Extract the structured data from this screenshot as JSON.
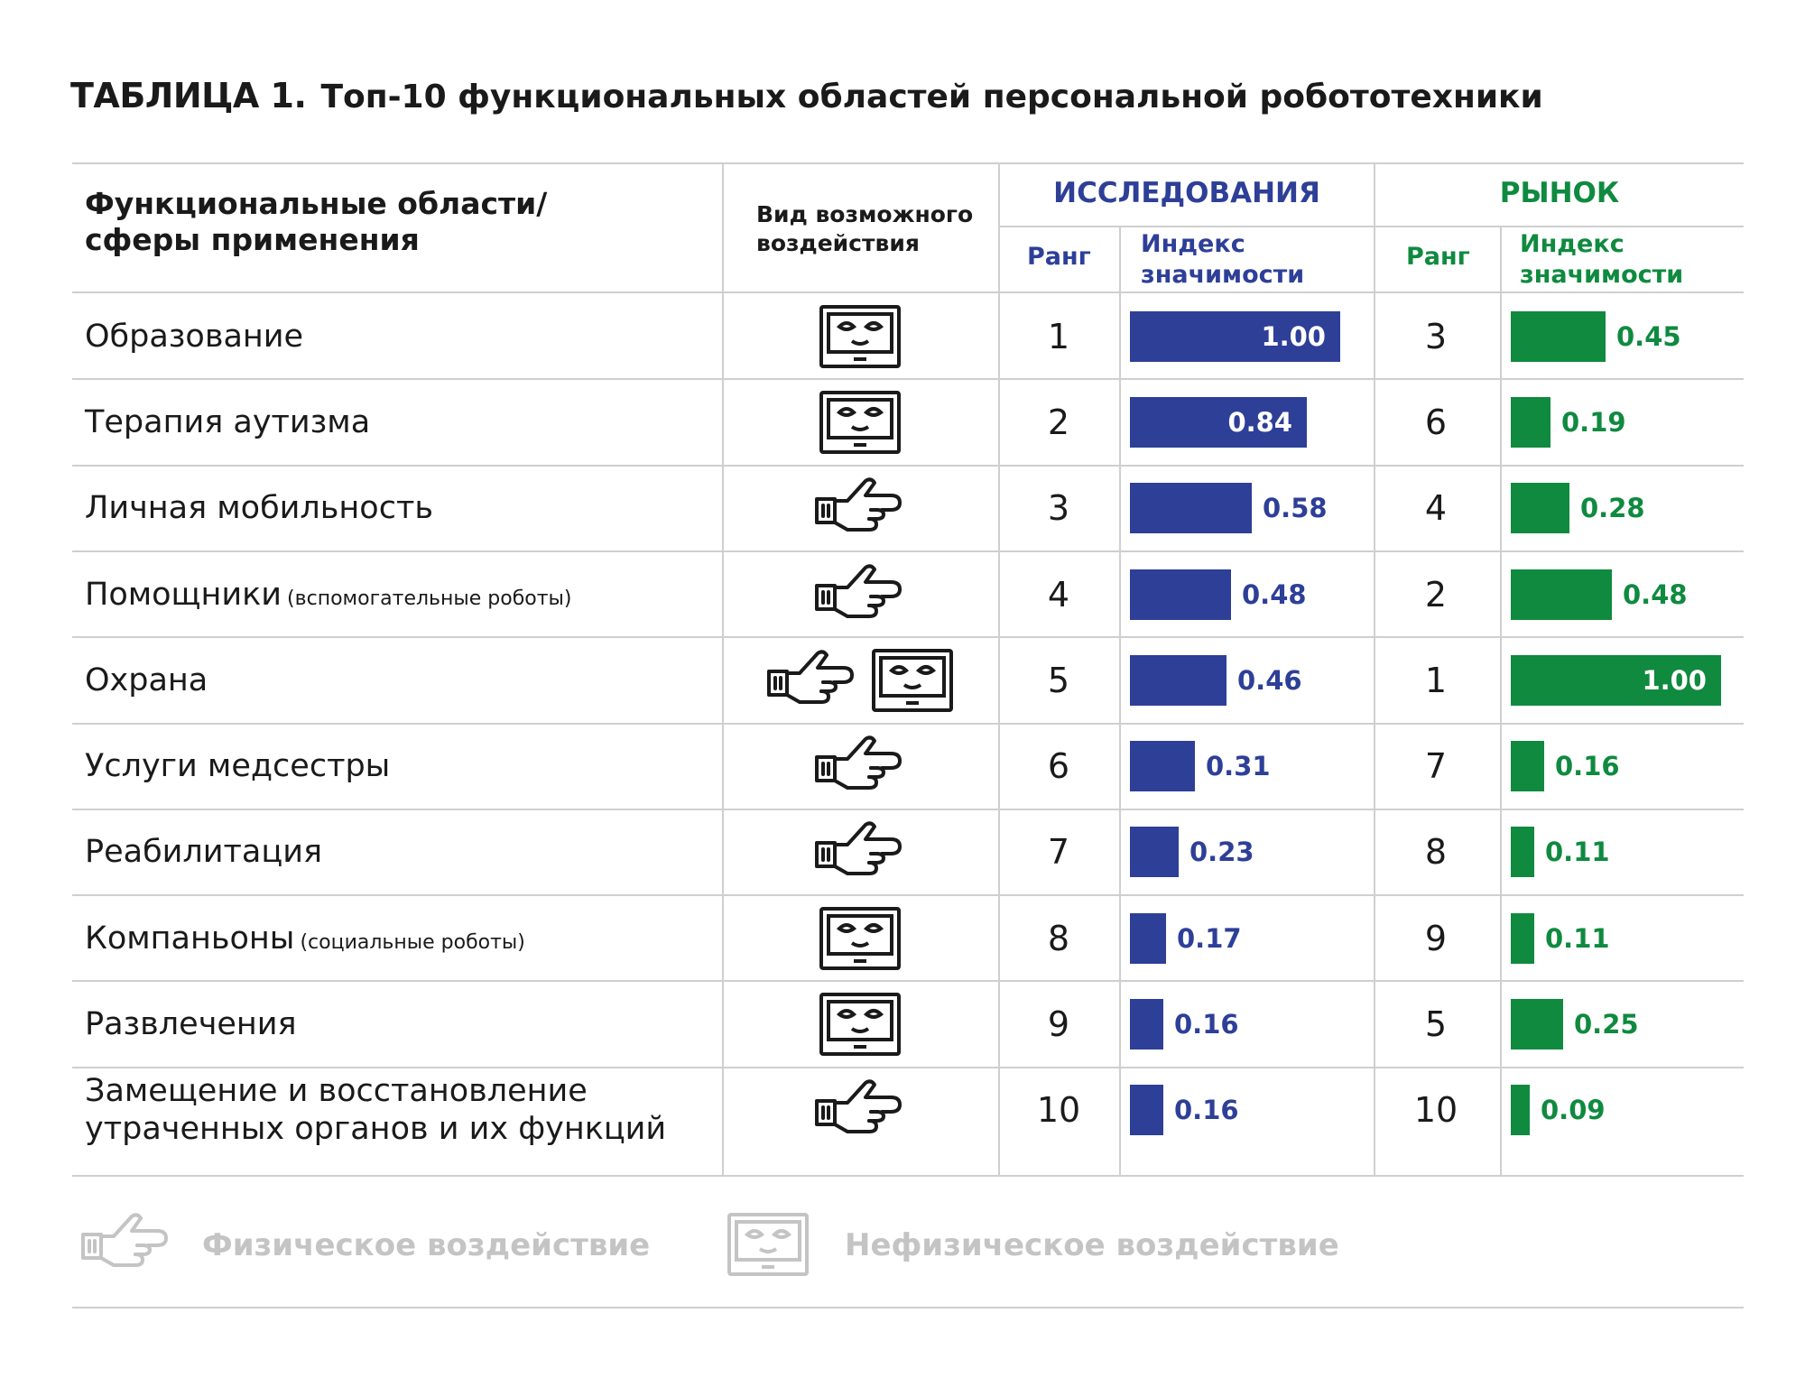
{
  "title": {
    "label": "ТАБЛИЦА 1.",
    "text": "Топ-10 функциональных областей персональной робототехники"
  },
  "header": {
    "areas_line1": "Функциональные области/",
    "areas_line2": "сферы применения",
    "impact_line1": "Вид возможного",
    "impact_line2": "воздействия",
    "research": "ИССЛЕДОВАНИЯ",
    "market": "РЫНОК",
    "rank": "Ранг",
    "index_line1": "Индекс",
    "index_line2": "значимости"
  },
  "colors": {
    "research": "#2e3f98",
    "market": "#0f8a3f",
    "rule": "#cfcfcf",
    "legend": "#c4c4c4"
  },
  "rows": [
    {
      "name": "Образование",
      "note": "",
      "icons": [
        "screen-face-icon"
      ],
      "research_rank": "1",
      "research_index": "1.00",
      "market_rank": "3",
      "market_index": "0.45"
    },
    {
      "name": "Терапия аутизма",
      "note": "",
      "icons": [
        "screen-face-icon"
      ],
      "research_rank": "2",
      "research_index": "0.84",
      "market_rank": "6",
      "market_index": "0.19"
    },
    {
      "name": "Личная мобильность",
      "note": "",
      "icons": [
        "hand-icon"
      ],
      "research_rank": "3",
      "research_index": "0.58",
      "market_rank": "4",
      "market_index": "0.28"
    },
    {
      "name": "Помощники",
      "note": "(вспомогательные роботы)",
      "icons": [
        "hand-icon"
      ],
      "research_rank": "4",
      "research_index": "0.48",
      "market_rank": "2",
      "market_index": "0.48"
    },
    {
      "name": "Охрана",
      "note": "",
      "icons": [
        "hand-icon",
        "screen-face-icon"
      ],
      "research_rank": "5",
      "research_index": "0.46",
      "market_rank": "1",
      "market_index": "1.00"
    },
    {
      "name": "Услуги медсестры",
      "note": "",
      "icons": [
        "hand-icon"
      ],
      "research_rank": "6",
      "research_index": "0.31",
      "market_rank": "7",
      "market_index": "0.16"
    },
    {
      "name": "Реабилитация",
      "note": "",
      "icons": [
        "hand-icon"
      ],
      "research_rank": "7",
      "research_index": "0.23",
      "market_rank": "8",
      "market_index": "0.11"
    },
    {
      "name": "Компаньоны",
      "note": "(социальные роботы)",
      "icons": [
        "screen-face-icon"
      ],
      "research_rank": "8",
      "research_index": "0.17",
      "market_rank": "9",
      "market_index": "0.11"
    },
    {
      "name": "Развлечения",
      "note": "",
      "icons": [
        "screen-face-icon"
      ],
      "research_rank": "9",
      "research_index": "0.16",
      "market_rank": "5",
      "market_index": "0.25"
    },
    {
      "name": "Замещение и восстановление",
      "name2": "утраченных органов и их функций",
      "note": "",
      "icons": [
        "hand-icon"
      ],
      "research_rank": "10",
      "research_index": "0.16",
      "market_rank": "10",
      "market_index": "0.09"
    }
  ],
  "legend": {
    "physical": "Физическое воздействие",
    "nonphysical": "Нефизическое воздействие"
  }
}
